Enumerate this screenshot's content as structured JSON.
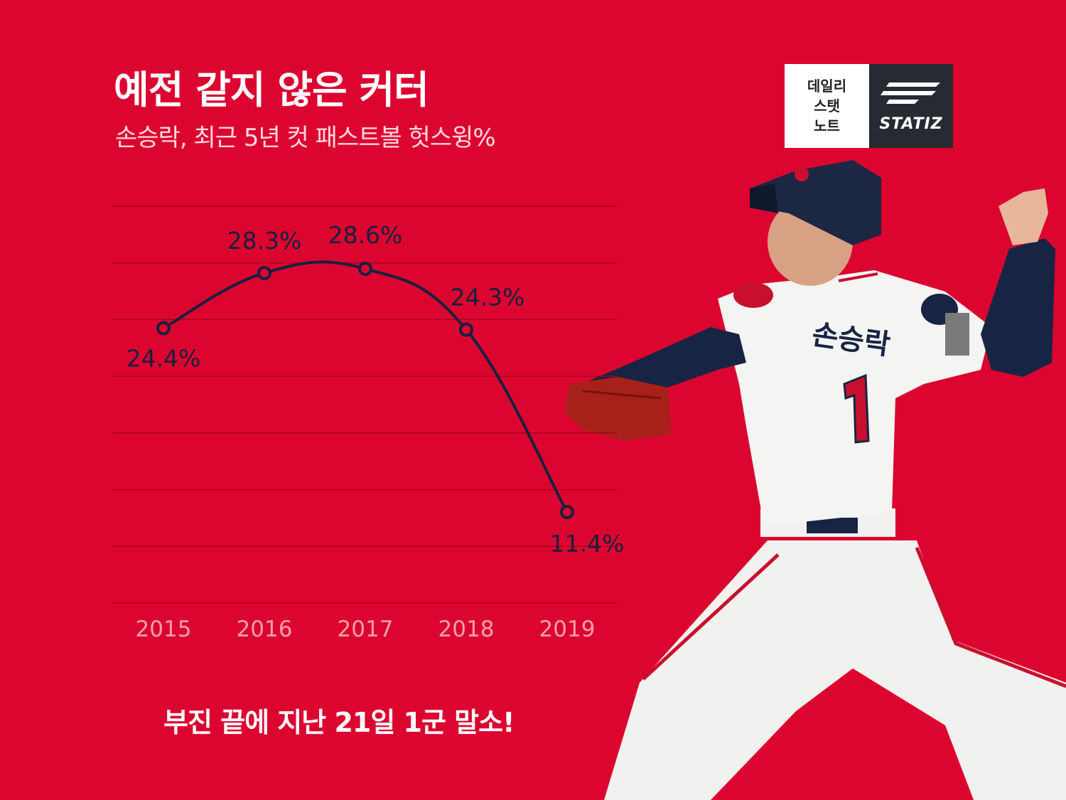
{
  "header": {
    "title": "예전 같지 않은 커터",
    "subtitle": "손승락, 최근 5년 컷 패스트볼 헛스윙%"
  },
  "logo": {
    "lines": [
      "데일리",
      "스탯",
      "노트"
    ],
    "brand": "STATIZ"
  },
  "footer": {
    "caption": "부진 끝에 지난 21일 1군 말소!"
  },
  "colors": {
    "background": "#dc0530",
    "line": "#16203f",
    "grid": "#a8001f",
    "tick": "#f2a0ae"
  },
  "chart_data": {
    "type": "line",
    "categories": [
      "2015",
      "2016",
      "2017",
      "2018",
      "2019"
    ],
    "values": [
      24.4,
      28.3,
      28.6,
      24.3,
      11.4
    ],
    "labels": [
      "24.4%",
      "28.3%",
      "28.6%",
      "24.3%",
      "11.4%"
    ],
    "unit": "%",
    "title": "손승락, 최근 5년 컷 패스트볼 헛스윙%",
    "xlabel": "",
    "ylabel": "",
    "grid": true,
    "smooth": true
  }
}
